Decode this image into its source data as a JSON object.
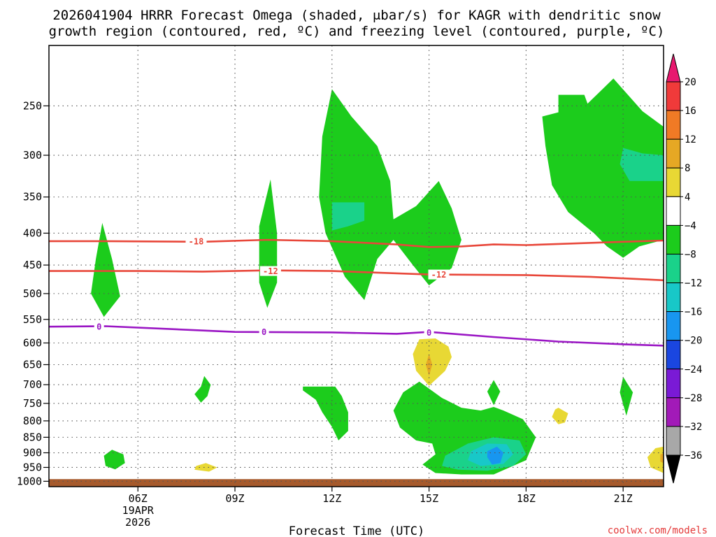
{
  "chart_data": {
    "type": "heatmap",
    "title_line1": "2026041904 HRRR Forecast Omega (shaded, μbar/s) for KAGR with dendritic snow",
    "title_line2": "growth region (contoured, red, ºC) and freezing level (contoured, purple, ºC)",
    "xlabel": "Forecast Time (UTC)",
    "credit": "coolwx.com/models",
    "x_range_hours": [
      3.25,
      22.25
    ],
    "x_ticks": [
      {
        "hour": 6,
        "label": "06Z",
        "sub1": "19APR",
        "sub2": "2026"
      },
      {
        "hour": 9,
        "label": "09Z"
      },
      {
        "hour": 12,
        "label": "12Z"
      },
      {
        "hour": 15,
        "label": "15Z"
      },
      {
        "hour": 18,
        "label": "18Z"
      },
      {
        "hour": 21,
        "label": "21Z"
      }
    ],
    "y_scale": "log",
    "y_range_hpa": [
      1020,
      200
    ],
    "y_ticks": [
      250,
      300,
      350,
      400,
      450,
      500,
      550,
      600,
      650,
      700,
      750,
      800,
      850,
      900,
      950,
      1000
    ],
    "grid": true,
    "colorbar": {
      "unit": "μbar/s",
      "levels": [
        20,
        16,
        12,
        8,
        4,
        -4,
        -8,
        -12,
        -16,
        -20,
        -24,
        -28,
        -32,
        -36
      ],
      "colors": [
        "#e8196f",
        "#f03a3a",
        "#f07a25",
        "#e6a824",
        "#e8d834",
        "#ffffff",
        "#1ccc1c",
        "#1ad28a",
        "#18c8c8",
        "#1896f0",
        "#1a46e0",
        "#7a1ad6",
        "#a21ab8",
        "#a8a8a8",
        "#000000"
      ]
    },
    "contours": [
      {
        "name": "-18",
        "color": "#e8473a",
        "points": [
          [
            3.25,
            412
          ],
          [
            5,
            412
          ],
          [
            8,
            413
          ],
          [
            10,
            410
          ],
          [
            12,
            412
          ],
          [
            14,
            417
          ],
          [
            15,
            421
          ],
          [
            16,
            420
          ],
          [
            17,
            417
          ],
          [
            18,
            418
          ],
          [
            21,
            413
          ],
          [
            22.25,
            411
          ]
        ]
      },
      {
        "name": "-12",
        "color": "#e8473a",
        "points": [
          [
            3.25,
            460
          ],
          [
            6,
            460
          ],
          [
            8,
            461
          ],
          [
            10,
            459
          ],
          [
            12,
            460
          ],
          [
            15,
            466
          ],
          [
            18,
            467
          ],
          [
            20,
            470
          ],
          [
            22.25,
            476
          ]
        ]
      },
      {
        "name": "0",
        "color": "#9a16c4",
        "points": [
          [
            3.25,
            565
          ],
          [
            5,
            564
          ],
          [
            7,
            570
          ],
          [
            9,
            576
          ],
          [
            12,
            577
          ],
          [
            14,
            580
          ],
          [
            15,
            576
          ],
          [
            17,
            587
          ],
          [
            19,
            597
          ],
          [
            21,
            603
          ],
          [
            22.25,
            606
          ]
        ]
      }
    ],
    "contour_labels": [
      {
        "text": "-18",
        "color": "#e8473a",
        "hour": 7.8,
        "hpa": 412
      },
      {
        "text": "-12",
        "color": "#e8473a",
        "hour": 10.1,
        "hpa": 460
      },
      {
        "text": "-12",
        "color": "#e8473a",
        "hour": 15.3,
        "hpa": 466
      },
      {
        "text": "0",
        "color": "#9a16c4",
        "hour": 4.8,
        "hpa": 565
      },
      {
        "text": "0",
        "color": "#9a16c4",
        "hour": 9.9,
        "hpa": 576
      },
      {
        "text": "0",
        "color": "#9a16c4",
        "hour": 15.0,
        "hpa": 577
      }
    ],
    "shaded_regions": [
      {
        "color": "#1ccc1c",
        "points": [
          [
            4.9,
            385
          ],
          [
            5.2,
            440
          ],
          [
            5.45,
            505
          ],
          [
            4.95,
            545
          ],
          [
            4.55,
            500
          ],
          [
            4.7,
            440
          ]
        ]
      },
      {
        "color": "#1ccc1c",
        "points": [
          [
            10.1,
            328
          ],
          [
            10.3,
            400
          ],
          [
            10.3,
            480
          ],
          [
            10.0,
            527
          ],
          [
            9.75,
            480
          ],
          [
            9.75,
            390
          ]
        ]
      },
      {
        "color": "#1ccc1c",
        "points": [
          [
            12.0,
            235
          ],
          [
            12.6,
            260
          ],
          [
            13.4,
            290
          ],
          [
            13.8,
            330
          ],
          [
            13.9,
            380
          ],
          [
            14.6,
            362
          ],
          [
            15.3,
            330
          ],
          [
            15.7,
            365
          ],
          [
            16.0,
            410
          ],
          [
            15.7,
            455
          ],
          [
            15.0,
            485
          ],
          [
            14.5,
            450
          ],
          [
            13.9,
            410
          ],
          [
            13.4,
            440
          ],
          [
            13.0,
            512
          ],
          [
            12.4,
            470
          ],
          [
            11.8,
            400
          ],
          [
            11.6,
            350
          ],
          [
            11.7,
            280
          ]
        ]
      },
      {
        "color": "#1ad28a",
        "points": [
          [
            12.0,
            357
          ],
          [
            13.0,
            357
          ],
          [
            13.0,
            382
          ],
          [
            12.5,
            390
          ],
          [
            12.0,
            396
          ]
        ]
      },
      {
        "color": "#1ccc1c",
        "points": [
          [
            19.9,
            248
          ],
          [
            20.7,
            226
          ],
          [
            21.6,
            255
          ],
          [
            22.25,
            270
          ],
          [
            22.25,
            410
          ],
          [
            21.5,
            420
          ],
          [
            21.0,
            438
          ],
          [
            20.5,
            420
          ],
          [
            20.1,
            400
          ],
          [
            19.3,
            370
          ],
          [
            18.8,
            335
          ],
          [
            18.6,
            290
          ],
          [
            18.5,
            260
          ],
          [
            19.0,
            256
          ],
          [
            19.0,
            240
          ],
          [
            19.8,
            240
          ]
        ]
      },
      {
        "color": "#1ad28a",
        "points": [
          [
            21.0,
            292
          ],
          [
            21.6,
            298
          ],
          [
            22.25,
            300
          ],
          [
            22.25,
            330
          ],
          [
            21.2,
            330
          ],
          [
            20.9,
            310
          ]
        ]
      },
      {
        "color": "#e8d834",
        "points": [
          [
            14.7,
            592
          ],
          [
            15.2,
            590
          ],
          [
            15.6,
            608
          ],
          [
            15.7,
            632
          ],
          [
            15.5,
            665
          ],
          [
            15.0,
            703
          ],
          [
            14.6,
            665
          ],
          [
            14.5,
            625
          ]
        ]
      },
      {
        "color": "#e6a824",
        "points": [
          [
            15.0,
            625
          ],
          [
            15.1,
            650
          ],
          [
            15.0,
            678
          ],
          [
            14.9,
            650
          ]
        ]
      },
      {
        "color": "#1ccc1c",
        "points": [
          [
            8.05,
            678
          ],
          [
            8.25,
            700
          ],
          [
            8.15,
            730
          ],
          [
            7.95,
            748
          ],
          [
            7.75,
            725
          ],
          [
            7.95,
            705
          ]
        ]
      },
      {
        "color": "#1ccc1c",
        "points": [
          [
            11.1,
            705
          ],
          [
            12.1,
            705
          ],
          [
            12.3,
            730
          ],
          [
            12.5,
            775
          ],
          [
            12.5,
            830
          ],
          [
            12.2,
            860
          ],
          [
            12.0,
            818
          ],
          [
            11.7,
            775
          ],
          [
            11.5,
            740
          ],
          [
            11.1,
            715
          ]
        ]
      },
      {
        "color": "#1ccc1c",
        "points": [
          [
            14.7,
            692
          ],
          [
            15.4,
            735
          ],
          [
            16.0,
            762
          ],
          [
            16.6,
            770
          ],
          [
            17.0,
            760
          ],
          [
            17.3,
            770
          ],
          [
            17.9,
            795
          ],
          [
            18.3,
            850
          ],
          [
            18.0,
            925
          ],
          [
            17.0,
            975
          ],
          [
            16.0,
            975
          ],
          [
            15.2,
            970
          ],
          [
            14.8,
            940
          ],
          [
            15.2,
            905
          ],
          [
            15.1,
            870
          ],
          [
            14.6,
            860
          ],
          [
            14.1,
            820
          ],
          [
            13.9,
            770
          ],
          [
            14.2,
            720
          ]
        ]
      },
      {
        "color": "#1ad28a",
        "points": [
          [
            15.5,
            910
          ],
          [
            16.2,
            870
          ],
          [
            17.0,
            850
          ],
          [
            17.8,
            860
          ],
          [
            18.0,
            905
          ],
          [
            17.6,
            945
          ],
          [
            16.8,
            962
          ],
          [
            15.9,
            958
          ],
          [
            15.4,
            945
          ]
        ]
      },
      {
        "color": "#18c8c8",
        "points": [
          [
            16.3,
            895
          ],
          [
            16.8,
            870
          ],
          [
            17.4,
            872
          ],
          [
            17.6,
            905
          ],
          [
            17.3,
            938
          ],
          [
            16.6,
            945
          ],
          [
            16.2,
            925
          ]
        ]
      },
      {
        "color": "#1896f0",
        "points": [
          [
            16.8,
            895
          ],
          [
            17.1,
            880
          ],
          [
            17.3,
            900
          ],
          [
            17.2,
            935
          ],
          [
            16.95,
            940
          ],
          [
            16.8,
            915
          ]
        ]
      },
      {
        "color": "#1ccc1c",
        "points": [
          [
            17.0,
            688
          ],
          [
            17.2,
            718
          ],
          [
            17.0,
            755
          ],
          [
            16.8,
            718
          ]
        ]
      },
      {
        "color": "#1ccc1c",
        "points": [
          [
            21.0,
            680
          ],
          [
            21.3,
            720
          ],
          [
            21.1,
            785
          ],
          [
            20.9,
            720
          ]
        ]
      },
      {
        "color": "#e8d834",
        "points": [
          [
            19.0,
            762
          ],
          [
            19.3,
            778
          ],
          [
            19.2,
            805
          ],
          [
            19.0,
            810
          ],
          [
            18.8,
            788
          ],
          [
            18.9,
            767
          ]
        ]
      },
      {
        "color": "#1ccc1c",
        "points": [
          [
            5.2,
            890
          ],
          [
            5.55,
            905
          ],
          [
            5.6,
            935
          ],
          [
            5.3,
            957
          ],
          [
            5.0,
            945
          ],
          [
            4.95,
            910
          ]
        ]
      },
      {
        "color": "#e8d834",
        "points": [
          [
            8.1,
            935
          ],
          [
            8.45,
            950
          ],
          [
            8.2,
            965
          ],
          [
            7.75,
            958
          ],
          [
            7.8,
            945
          ]
        ]
      },
      {
        "color": "#e8d834",
        "points": [
          [
            22.0,
            885
          ],
          [
            22.25,
            880
          ],
          [
            22.25,
            970
          ],
          [
            21.85,
            950
          ],
          [
            21.75,
            915
          ]
        ]
      },
      {
        "color": "#e6a824",
        "points": [
          [
            22.15,
            905
          ],
          [
            22.25,
            903
          ],
          [
            22.25,
            935
          ],
          [
            22.15,
            930
          ]
        ]
      }
    ],
    "terrain": {
      "color": "#a65a2c",
      "top_hpa": 992
    }
  }
}
